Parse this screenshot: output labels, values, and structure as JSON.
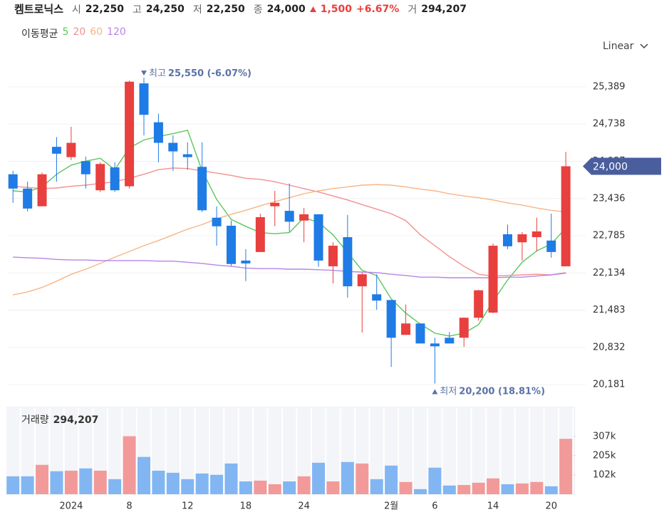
{
  "chart_data": {
    "type": "candlestick",
    "title": "켐트로닉스",
    "quote": [
      {
        "label": "시",
        "text": "22,250"
      },
      {
        "label": "고",
        "text": "24,250"
      },
      {
        "label": "저",
        "text": "22,250"
      },
      {
        "label": "종",
        "text": "24,000"
      },
      {
        "change": "1,500",
        "pct": "+6.67%"
      },
      {
        "label": "거",
        "text": "294,207"
      }
    ],
    "ma_label": "이동평균",
    "scale_menu": "Linear",
    "grid": true,
    "up_color": "#e8403e",
    "down_color": "#1f7be6",
    "categories": [
      null,
      null,
      null,
      null,
      "2024",
      null,
      null,
      null,
      "8",
      null,
      null,
      null,
      "12",
      null,
      null,
      null,
      "18",
      null,
      null,
      null,
      "24",
      null,
      null,
      null,
      null,
      null,
      "2월",
      null,
      null,
      "6",
      null,
      null,
      null,
      "14",
      null,
      null,
      null,
      "20",
      null
    ],
    "candles": {
      "open": [
        23860,
        23610,
        23300,
        24340,
        24160,
        24090,
        23580,
        23980,
        23650,
        25450,
        24770,
        24410,
        24210,
        23990,
        23100,
        22960,
        22350,
        22500,
        23300,
        23220,
        23050,
        23160,
        22250,
        22760,
        21900,
        21760,
        21660,
        21050,
        21250,
        20900,
        21000,
        21000,
        21350,
        21440,
        22810,
        22670,
        22760,
        22700,
        22250
      ],
      "high": [
        23920,
        23730,
        23890,
        24510,
        24690,
        24170,
        24070,
        24070,
        25500,
        25550,
        24920,
        24540,
        24420,
        24420,
        23300,
        23050,
        22550,
        23170,
        23570,
        23700,
        23270,
        23160,
        22670,
        23150,
        22140,
        22110,
        21660,
        21580,
        21250,
        21000,
        21100,
        21360,
        21840,
        22650,
        22980,
        22850,
        23100,
        23170,
        24250
      ],
      "low": [
        23360,
        23210,
        23300,
        23730,
        24110,
        23610,
        23550,
        23550,
        23610,
        24540,
        24070,
        23920,
        23940,
        23200,
        22610,
        22260,
        21990,
        22500,
        22950,
        22850,
        22670,
        22240,
        21950,
        21700,
        21090,
        21490,
        20490,
        21050,
        20900,
        20200,
        20900,
        20840,
        21300,
        21430,
        22550,
        22350,
        22510,
        22400,
        22250
      ],
      "close": [
        23610,
        23260,
        23860,
        24220,
        24410,
        23860,
        24040,
        23580,
        25480,
        24900,
        24410,
        24260,
        24160,
        23230,
        22950,
        22290,
        22300,
        23110,
        23360,
        23030,
        23160,
        22350,
        22610,
        21900,
        22110,
        21650,
        21000,
        21250,
        20900,
        20850,
        20900,
        21350,
        21830,
        22610,
        22600,
        22810,
        22860,
        22500,
        24000
      ]
    },
    "series": [
      {
        "name": "5",
        "color": "#5cc65c",
        "values": [
          23570,
          23550,
          23640,
          23860,
          24020,
          24090,
          24140,
          23940,
          24320,
          24460,
          24520,
          24570,
          24630,
          23920,
          23420,
          23070,
          22950,
          22840,
          22820,
          22840,
          23100,
          23020,
          22800,
          22490,
          22180,
          22090,
          21680,
          21430,
          21240,
          21080,
          21030,
          21080,
          21230,
          21640,
          22010,
          22320,
          22520,
          22640,
          22920
        ]
      },
      {
        "name": "20",
        "color": "#f39090",
        "values": [
          23650,
          23630,
          23610,
          23620,
          23650,
          23670,
          23700,
          23730,
          23790,
          23860,
          23940,
          23970,
          23960,
          23920,
          23880,
          23840,
          23790,
          23770,
          23730,
          23670,
          23610,
          23550,
          23480,
          23410,
          23330,
          23250,
          23170,
          23050,
          22800,
          22610,
          22420,
          22250,
          22110,
          22080,
          22090,
          22100,
          22110,
          22100,
          22140
        ]
      },
      {
        "name": "60",
        "color": "#f7b585",
        "values": [
          21750,
          21800,
          21880,
          21990,
          22110,
          22200,
          22300,
          22410,
          22510,
          22610,
          22700,
          22800,
          22900,
          22980,
          23080,
          23160,
          23230,
          23310,
          23380,
          23450,
          23520,
          23570,
          23610,
          23640,
          23670,
          23680,
          23670,
          23640,
          23600,
          23570,
          23520,
          23480,
          23450,
          23410,
          23360,
          23320,
          23270,
          23230,
          23200
        ]
      },
      {
        "name": "120",
        "color": "#b784e8",
        "values": [
          22410,
          22400,
          22390,
          22370,
          22360,
          22360,
          22350,
          22350,
          22350,
          22350,
          22340,
          22340,
          22320,
          22300,
          22270,
          22250,
          22220,
          22210,
          22210,
          22200,
          22200,
          22190,
          22180,
          22160,
          22150,
          22140,
          22110,
          22090,
          22060,
          22060,
          22050,
          22050,
          22050,
          22050,
          22060,
          22060,
          22080,
          22100,
          22130
        ]
      }
    ],
    "ylim": [
      19932,
      25663
    ],
    "yticks": [
      {
        "value": 20181,
        "label": "20,181"
      },
      {
        "value": 20832,
        "label": "20,832"
      },
      {
        "value": 21483,
        "label": "21,483"
      },
      {
        "value": 22134,
        "label": "22,134"
      },
      {
        "value": 22785,
        "label": "22,785"
      },
      {
        "value": 23436,
        "label": "23,436"
      },
      {
        "value": 24087,
        "label": "24,087"
      },
      {
        "value": 24738,
        "label": "24,738"
      },
      {
        "value": 25389,
        "label": "25,389"
      }
    ],
    "last_price": {
      "value": 24000,
      "label": "24,000"
    },
    "annotations": [
      {
        "kind": "high",
        "label": "최고",
        "value": 25550,
        "value_label": "25,550 (-6.07%)"
      },
      {
        "kind": "low",
        "label": "최저",
        "value": 20200,
        "value_label": "20,200 (18.81%)"
      }
    ],
    "volume": {
      "title": "거래량",
      "last_label": "294,207",
      "values": [
        95000,
        95000,
        156000,
        122000,
        125000,
        137000,
        125000,
        80000,
        308000,
        198000,
        125000,
        114000,
        80000,
        110000,
        103000,
        163000,
        68000,
        72000,
        53000,
        68000,
        95000,
        167000,
        68000,
        171000,
        163000,
        80000,
        152000,
        65000,
        27000,
        141000,
        46000,
        49000,
        61000,
        84000,
        53000,
        57000,
        65000,
        42000,
        294207
      ],
      "up_color": "#f29a9a",
      "down_color": "#82b6f2",
      "ylim": [
        0,
        450000
      ],
      "yticks": [
        {
          "value": 102000,
          "label": "102k"
        },
        {
          "value": 205000,
          "label": "205k"
        },
        {
          "value": 307000,
          "label": "307k"
        }
      ]
    }
  }
}
